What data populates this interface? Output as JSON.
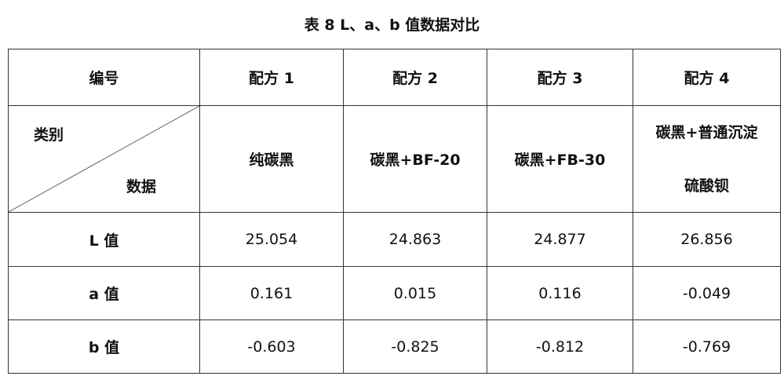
{
  "title": "表 8   L、a、b 值数据对比",
  "header": {
    "corner": "编号",
    "columns": [
      "配方 1",
      "配方 2",
      "配方 3",
      "配方 4"
    ]
  },
  "category_row": {
    "corner_top": "类别",
    "corner_bottom": "数据",
    "values": [
      "纯碳黑",
      "碳黑+BF-20",
      "碳黑+FB-30"
    ],
    "last_line1": "碳黑+普通沉淀",
    "last_line2": "硫酸钡"
  },
  "rows": [
    {
      "label": "L 值",
      "values": [
        "25.054",
        "24.863",
        "24.877",
        "26.856"
      ]
    },
    {
      "label": "a 值",
      "values": [
        "0.161",
        "0.015",
        "0.116",
        "-0.049"
      ]
    },
    {
      "label": "b 值",
      "values": [
        "-0.603",
        "-0.825",
        "-0.812",
        "-0.769"
      ]
    }
  ]
}
